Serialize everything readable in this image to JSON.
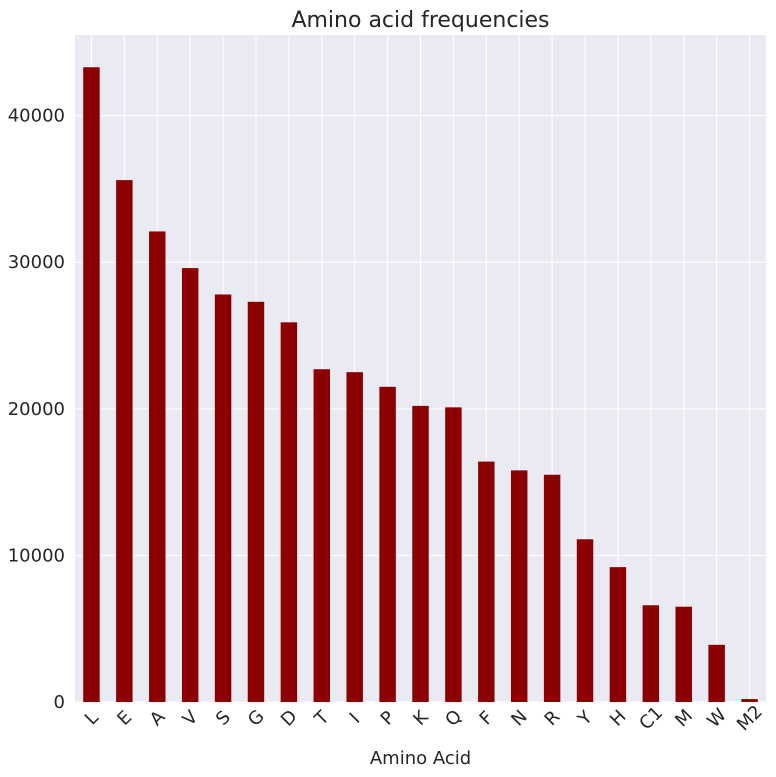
{
  "chart_data": {
    "type": "bar",
    "title": "Amino acid frequencies",
    "xlabel": "Amino Acid",
    "ylabel": "",
    "categories": [
      "L",
      "E",
      "A",
      "V",
      "S",
      "G",
      "D",
      "T",
      "I",
      "P",
      "K",
      "Q",
      "F",
      "N",
      "R",
      "Y",
      "H",
      "C1",
      "M",
      "W",
      "M2"
    ],
    "values": [
      43300,
      35600,
      32100,
      29600,
      27800,
      27300,
      25900,
      22700,
      22500,
      21500,
      20200,
      20100,
      16400,
      15800,
      15500,
      11100,
      9200,
      6600,
      6500,
      3900,
      200
    ],
    "ylim": [
      0,
      45500
    ],
    "yticks": [
      0,
      10000,
      20000,
      30000,
      40000
    ],
    "grid": true,
    "legend": "none",
    "bar_color": "#8b0000",
    "background_color": "#eaeaf2",
    "grid_color": "#ffffff"
  }
}
